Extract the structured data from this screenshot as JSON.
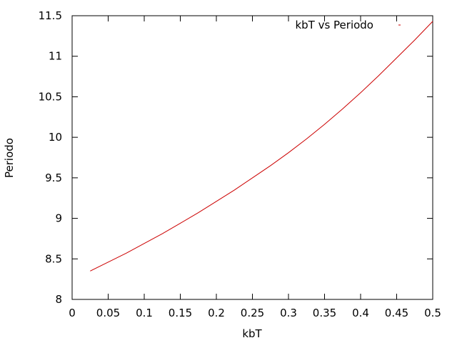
{
  "chart_data": {
    "type": "line",
    "xlabel": "kbT",
    "ylabel": "Periodo",
    "xlim": [
      0,
      0.5
    ],
    "ylim": [
      8,
      11.5
    ],
    "x_ticks": [
      "0",
      "0.05",
      "0.1",
      "0.15",
      "0.2",
      "0.25",
      "0.3",
      "0.35",
      "0.4",
      "0.45",
      "0.5"
    ],
    "y_ticks": [
      "8",
      "8.5",
      "9",
      "9.5",
      "10",
      "10.5",
      "11",
      "11.5"
    ],
    "grid": false,
    "legend_position": "top-right",
    "series": [
      {
        "name": "kbT vs Periodo",
        "color": "#cc0000",
        "x": [
          0.025,
          0.05,
          0.075,
          0.1,
          0.125,
          0.15,
          0.175,
          0.2,
          0.225,
          0.25,
          0.275,
          0.3,
          0.325,
          0.35,
          0.375,
          0.4,
          0.425,
          0.45,
          0.475,
          0.5
        ],
        "y": [
          8.35,
          8.46,
          8.57,
          8.69,
          8.81,
          8.94,
          9.07,
          9.21,
          9.35,
          9.5,
          9.65,
          9.81,
          9.98,
          10.16,
          10.35,
          10.55,
          10.76,
          10.98,
          11.2,
          11.43
        ]
      }
    ]
  }
}
